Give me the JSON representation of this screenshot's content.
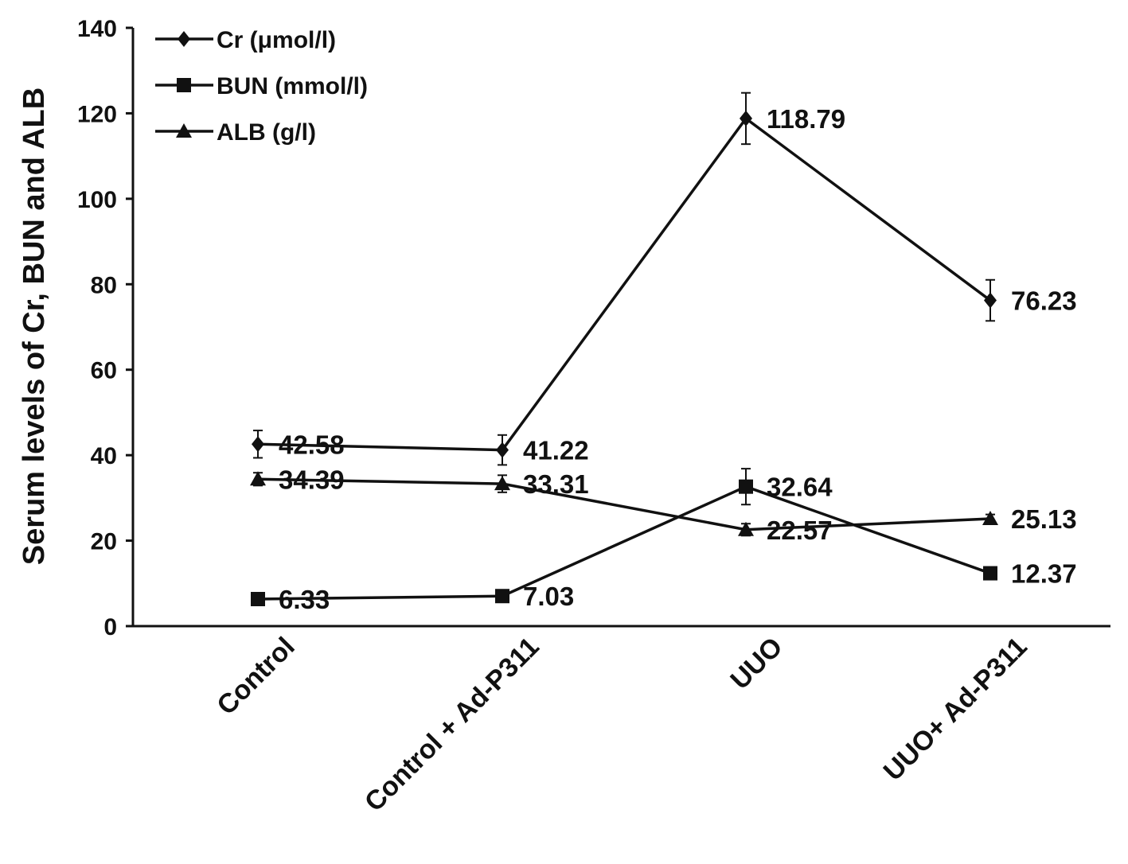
{
  "chart_data": {
    "type": "line",
    "ylabel": "Serum levels of Cr, BUN and ALB",
    "xlabel": "",
    "categories": [
      "Control",
      "Control + Ad-P311",
      "UUO",
      "UUO+ Ad-P311"
    ],
    "ylim": [
      0,
      140
    ],
    "yticks": [
      0,
      20,
      40,
      60,
      80,
      100,
      120,
      140
    ],
    "legend_position": "top-left",
    "grid": false,
    "series": [
      {
        "name": "Cr  (μmol/l)",
        "marker": "diamond",
        "values": [
          42.58,
          41.22,
          118.79,
          76.23
        ],
        "labels": [
          "42.58",
          "41.22",
          "118.79",
          "76.23"
        ],
        "errors": [
          3.2,
          3.5,
          6.0,
          4.8
        ]
      },
      {
        "name": "BUN  (mmol/l)",
        "marker": "square",
        "values": [
          6.33,
          7.03,
          32.64,
          12.37
        ],
        "labels": [
          "6.33",
          "7.03",
          "32.64",
          "12.37"
        ],
        "errors": [
          0.6,
          0.6,
          4.2,
          0.8
        ]
      },
      {
        "name": "ALB  (g/l)",
        "marker": "triangle",
        "values": [
          34.39,
          33.31,
          22.57,
          25.13
        ],
        "labels": [
          "34.39",
          "33.31",
          "22.57",
          "25.13"
        ],
        "errors": [
          1.5,
          2.0,
          1.4,
          1.0
        ]
      }
    ]
  }
}
